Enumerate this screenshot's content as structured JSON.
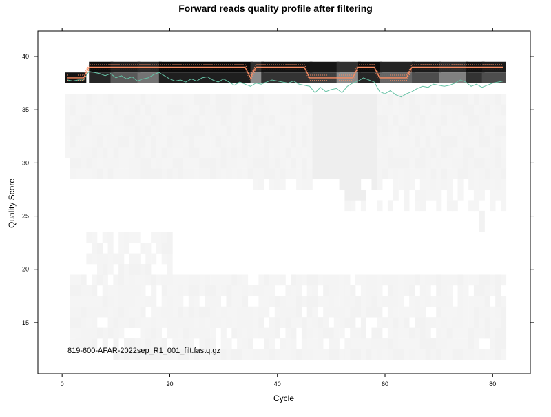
{
  "chart_data": {
    "type": "heatmap",
    "title": "Forward reads quality profile after filtering",
    "xlabel": "Cycle",
    "ylabel": "Quality Score",
    "xlim": [
      -4.5,
      87
    ],
    "ylim": [
      10.2,
      42.4
    ],
    "x_ticks": [
      0,
      20,
      40,
      60,
      80
    ],
    "y_ticks": [
      15,
      20,
      25,
      30,
      35,
      40
    ],
    "annotation": "819-600-AFAR-2022sep_R1_001_filt.fastq.gz",
    "legend": "none",
    "grid": false,
    "colors": {
      "heat_dark": "#000000",
      "heat_light": "#f4f4f4",
      "mean_line": "#66c2a5",
      "median_line": "#fc8d62",
      "quartile_line": "#fc8d62"
    },
    "top_band": {
      "q_low": 37.5,
      "q_high": 39.5,
      "cycles_1_4_q": 38,
      "shade_segments": [
        {
          "from": 5,
          "to": 9,
          "shade": 0.15
        },
        {
          "from": 9,
          "to": 14,
          "shade": 0.35
        },
        {
          "from": 14,
          "to": 18,
          "shade": 0.45
        },
        {
          "from": 18,
          "to": 35,
          "shade": 0.12
        },
        {
          "from": 35,
          "to": 37,
          "shade": 0.55
        },
        {
          "from": 37,
          "to": 46,
          "shade": 0.2
        },
        {
          "from": 46,
          "to": 51,
          "shade": 0.25
        },
        {
          "from": 51,
          "to": 55,
          "shade": 0.55
        },
        {
          "from": 55,
          "to": 59,
          "shade": 0.15
        },
        {
          "from": 59,
          "to": 65,
          "shade": 0.4
        },
        {
          "from": 65,
          "to": 70,
          "shade": 0.3
        },
        {
          "from": 70,
          "to": 75,
          "shade": 0.5
        },
        {
          "from": 75,
          "to": 78,
          "shade": 0.2
        },
        {
          "from": 78,
          "to": 82,
          "shade": 0.3
        }
      ]
    },
    "mean_q": [
      37.8,
      37.7,
      37.8,
      37.8,
      38.6,
      38.5,
      38.4,
      38.2,
      38.4,
      38.0,
      38.2,
      37.9,
      38.1,
      37.7,
      37.9,
      38.0,
      38.3,
      38.5,
      38.2,
      37.9,
      37.7,
      37.8,
      37.6,
      37.9,
      37.7,
      38.0,
      38.1,
      37.8,
      37.6,
      37.9,
      37.6,
      37.3,
      37.6,
      37.4,
      37.2,
      37.5,
      37.4,
      37.6,
      37.8,
      37.7,
      37.6,
      37.5,
      37.7,
      37.4,
      37.3,
      37.2,
      36.6,
      37.1,
      36.7,
      36.9,
      37.0,
      36.6,
      37.2,
      37.5,
      37.7,
      38.0,
      37.8,
      37.6,
      36.7,
      36.5,
      36.8,
      36.4,
      36.2,
      36.5,
      36.7,
      37.0,
      37.2,
      37.1,
      37.4,
      37.3,
      37.2,
      37.3,
      37.5,
      37.8,
      37.6,
      37.2,
      37.4,
      37.1,
      37.3,
      37.5,
      37.6,
      37.7
    ],
    "median_q": [
      38,
      38,
      38,
      38,
      39,
      39,
      39,
      39,
      39,
      39,
      39,
      39,
      39,
      39,
      39,
      39,
      39,
      39,
      39,
      39,
      39,
      39,
      39,
      39,
      39,
      39,
      39,
      39,
      39,
      39,
      39,
      39,
      39,
      39,
      38,
      39,
      39,
      39,
      39,
      39,
      39,
      39,
      39,
      39,
      39,
      38,
      38,
      38,
      38,
      38,
      38,
      38,
      38,
      38,
      39,
      39,
      39,
      39,
      38,
      38,
      38,
      38,
      38,
      38,
      39,
      39,
      39,
      39,
      39,
      39,
      39,
      39,
      39,
      39,
      39,
      39,
      39,
      39,
      39,
      39,
      39,
      39
    ]
  }
}
